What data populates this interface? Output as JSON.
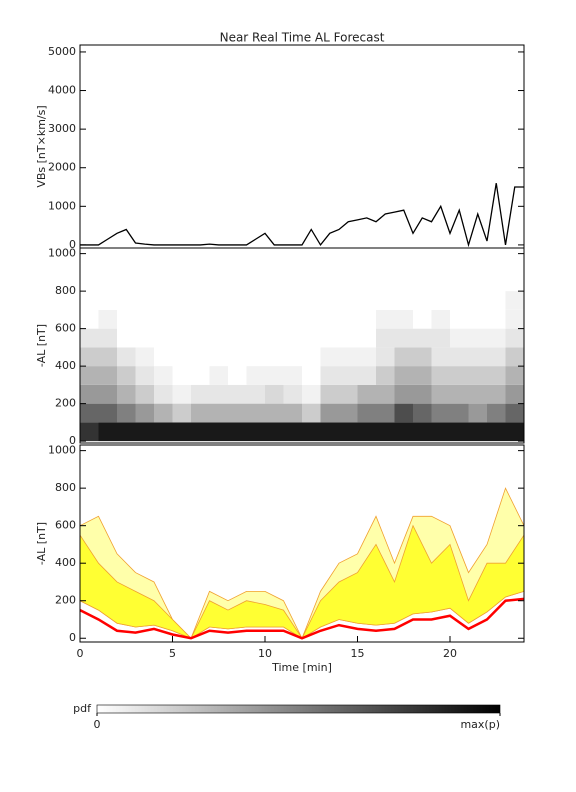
{
  "chart_data": [
    {
      "type": "line",
      "title": "Near Real Time AL Forecast",
      "ylabel": "VBs [nT×km/s]",
      "color": "#000000",
      "x": [
        0,
        0.5,
        1,
        1.5,
        2,
        2.5,
        3,
        3.5,
        4,
        4.5,
        5,
        5.5,
        6,
        6.5,
        7,
        7.5,
        8,
        8.5,
        9,
        9.5,
        10,
        10.5,
        11,
        11.5,
        12,
        12.5,
        13,
        13.5,
        14,
        14.5,
        15,
        15.5,
        16,
        16.5,
        17,
        17.5,
        18,
        18.5,
        19,
        19.5,
        20,
        20.5,
        21,
        21.5,
        22,
        22.5,
        23,
        23.5,
        24
      ],
      "values": [
        0,
        0,
        0,
        150,
        300,
        400,
        50,
        20,
        0,
        0,
        0,
        0,
        0,
        0,
        20,
        0,
        0,
        0,
        0,
        150,
        300,
        0,
        0,
        0,
        0,
        400,
        0,
        300,
        400,
        600,
        650,
        700,
        600,
        800,
        850,
        900,
        300,
        700,
        600,
        1000,
        300,
        900,
        0,
        800,
        100,
        1600,
        0,
        1500,
        1500
      ],
      "xlim": [
        0,
        24
      ],
      "ylim": [
        -80,
        5180
      ],
      "yticks": [
        0,
        1000,
        2000,
        3000,
        4000,
        5000
      ]
    },
    {
      "type": "heatmap",
      "ylabel": "-AL [nT]",
      "x_bins": [
        0,
        1,
        2,
        3,
        4,
        5,
        6,
        7,
        8,
        9,
        10,
        11,
        12,
        13,
        14,
        15,
        16,
        17,
        18,
        19,
        20,
        21,
        22,
        23,
        24
      ],
      "y_bins": [
        0,
        100,
        200,
        300,
        400,
        500,
        600,
        700,
        800
      ],
      "pdf": [
        [
          0.8,
          0.6,
          0.4,
          0.3,
          0.2,
          0.1,
          0,
          0
        ],
        [
          0.9,
          0.6,
          0.4,
          0.3,
          0.2,
          0.1,
          0.05,
          0
        ],
        [
          0.9,
          0.5,
          0.3,
          0.2,
          0.1,
          0,
          0,
          0
        ],
        [
          0.9,
          0.4,
          0.2,
          0.1,
          0.05,
          0,
          0,
          0
        ],
        [
          0.9,
          0.3,
          0.1,
          0.05,
          0,
          0,
          0,
          0
        ],
        [
          0.9,
          0.2,
          0.05,
          0,
          0,
          0,
          0,
          0
        ],
        [
          0.9,
          0.3,
          0.1,
          0,
          0,
          0,
          0,
          0
        ],
        [
          0.9,
          0.3,
          0.1,
          0.05,
          0,
          0,
          0,
          0
        ],
        [
          0.9,
          0.3,
          0.1,
          0,
          0,
          0,
          0,
          0
        ],
        [
          0.9,
          0.3,
          0.1,
          0.05,
          0,
          0,
          0,
          0
        ],
        [
          0.9,
          0.3,
          0.15,
          0.05,
          0,
          0,
          0,
          0
        ],
        [
          0.9,
          0.3,
          0.1,
          0.05,
          0,
          0,
          0,
          0
        ],
        [
          0.9,
          0.2,
          0.05,
          0,
          0,
          0,
          0,
          0
        ],
        [
          0.9,
          0.4,
          0.2,
          0.1,
          0.05,
          0,
          0,
          0
        ],
        [
          0.9,
          0.4,
          0.2,
          0.1,
          0.05,
          0,
          0,
          0
        ],
        [
          0.9,
          0.5,
          0.3,
          0.1,
          0.05,
          0,
          0,
          0
        ],
        [
          0.9,
          0.5,
          0.3,
          0.2,
          0.1,
          0.1,
          0.05,
          0
        ],
        [
          0.9,
          0.7,
          0.4,
          0.3,
          0.2,
          0.1,
          0.05,
          0
        ],
        [
          0.9,
          0.6,
          0.4,
          0.3,
          0.2,
          0.1,
          0,
          0
        ],
        [
          0.9,
          0.5,
          0.3,
          0.2,
          0.1,
          0.1,
          0.05,
          0
        ],
        [
          0.9,
          0.5,
          0.3,
          0.2,
          0.1,
          0.05,
          0,
          0
        ],
        [
          0.9,
          0.4,
          0.3,
          0.2,
          0.1,
          0.05,
          0,
          0
        ],
        [
          0.9,
          0.5,
          0.3,
          0.2,
          0.1,
          0.05,
          0,
          0
        ],
        [
          0.9,
          0.6,
          0.4,
          0.3,
          0.2,
          0.1,
          0.05,
          0.05
        ]
      ],
      "xlim": [
        0,
        24
      ],
      "ylim": [
        -10,
        1030
      ],
      "yticks": [
        0,
        200,
        400,
        600,
        800,
        1000
      ]
    },
    {
      "type": "band",
      "ylabel": "-AL [nT]",
      "xlabel": "Time [min]",
      "x": [
        0,
        1,
        2,
        3,
        4,
        5,
        6,
        7,
        8,
        9,
        10,
        11,
        12,
        13,
        14,
        15,
        16,
        17,
        18,
        19,
        20,
        21,
        22,
        23,
        24
      ],
      "median": [
        150,
        100,
        40,
        30,
        50,
        20,
        0,
        40,
        30,
        40,
        40,
        40,
        0,
        40,
        70,
        50,
        40,
        50,
        100,
        100,
        120,
        50,
        100,
        200,
        210
      ],
      "lower": [
        200,
        150,
        80,
        60,
        70,
        40,
        0,
        60,
        50,
        60,
        60,
        60,
        0,
        60,
        100,
        80,
        70,
        80,
        130,
        140,
        160,
        80,
        140,
        220,
        250
      ],
      "upper": [
        550,
        400,
        300,
        250,
        200,
        100,
        0,
        200,
        150,
        200,
        180,
        150,
        0,
        200,
        300,
        350,
        500,
        300,
        600,
        400,
        500,
        200,
        400,
        400,
        550
      ],
      "outer_upper": [
        600,
        650,
        450,
        350,
        300,
        100,
        0,
        250,
        200,
        250,
        250,
        200,
        0,
        250,
        400,
        450,
        650,
        400,
        650,
        650,
        600,
        350,
        500,
        800,
        600
      ],
      "median_color": "#ff0000",
      "band_color": "#ffff33",
      "outer_color": "#ffffaa",
      "edge_color": "#f0a030",
      "xlim": [
        0,
        24
      ],
      "xticks": [
        0,
        5,
        10,
        15,
        20
      ],
      "ylim": [
        -20,
        1030
      ],
      "yticks": [
        0,
        200,
        400,
        600,
        800,
        1000
      ]
    },
    {
      "type": "colorbar",
      "label": "pdf",
      "xlim": [
        0,
        1
      ],
      "ticks": [
        0,
        {
          "value": 1,
          "label": "max(p)"
        }
      ]
    }
  ]
}
